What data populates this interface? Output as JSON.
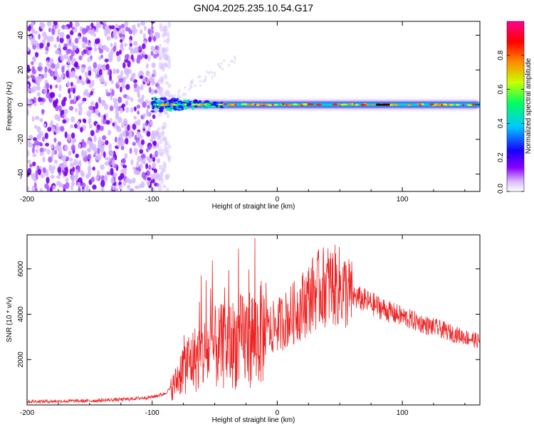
{
  "title": "GN04.2025.235.10.54.G17",
  "chart_data": [
    {
      "type": "heatmap",
      "xlabel": "Height of straight line (km)",
      "ylabel": "Frequency (Hz)",
      "xlim": [
        -200,
        162
      ],
      "ylim": [
        -50,
        48
      ],
      "xticks": [
        -200,
        -100,
        0,
        100
      ],
      "xtick_labels": [
        "-200",
        "-100",
        "0",
        "100"
      ],
      "yticks": [
        -40,
        -20,
        0,
        20,
        40
      ],
      "ytick_labels": [
        "-40",
        "-20",
        "0",
        "20",
        "40"
      ],
      "colorbar": {
        "label": "Normalized spectral amplitude",
        "range": [
          0,
          1
        ],
        "ticks": [
          0,
          0.2,
          0.4,
          0.6,
          0.8
        ],
        "tick_labels": [
          "0.0",
          "0.2",
          "0.4",
          "0.6",
          "0.8"
        ],
        "colors": [
          "#ffffff",
          "#d9b8ff",
          "#8a00ff",
          "#1800ff",
          "#00c8ff",
          "#00ff60",
          "#c8ff00",
          "#ff8c00",
          "#ff0000",
          "#ff0090"
        ]
      },
      "noise_region_x": [
        -200,
        -88
      ],
      "signal_frequency_hz": 0
    },
    {
      "type": "line",
      "xlabel": "Height of straight line (km)",
      "ylabel": "SNR (10 * v/v)",
      "xlim": [
        -200,
        162
      ],
      "ylim": [
        0,
        7500
      ],
      "xticks": [
        -200,
        -100,
        0,
        100
      ],
      "xtick_labels": [
        "-200",
        "-100",
        "0",
        "100"
      ],
      "yticks": [
        2000,
        4000,
        6000
      ],
      "ytick_labels": [
        "2000",
        "4000",
        "6000"
      ],
      "color": "#ee2222",
      "profile": {
        "x": [
          -200,
          -150,
          -120,
          -100,
          -90,
          -82,
          -78,
          -74,
          -70,
          -60,
          -50,
          -40,
          -30,
          -20,
          -10,
          0,
          10,
          20,
          30,
          40,
          50,
          60,
          70,
          80,
          90,
          100,
          110,
          120,
          130,
          140,
          150,
          162
        ],
        "y": [
          150,
          180,
          250,
          350,
          500,
          900,
          1400,
          1800,
          1900,
          2200,
          2500,
          2600,
          2800,
          3000,
          3200,
          3500,
          3900,
          4400,
          5000,
          5300,
          5200,
          4800,
          4600,
          4350,
          4100,
          3900,
          3700,
          3500,
          3350,
          3150,
          3000,
          2800
        ]
      }
    }
  ]
}
